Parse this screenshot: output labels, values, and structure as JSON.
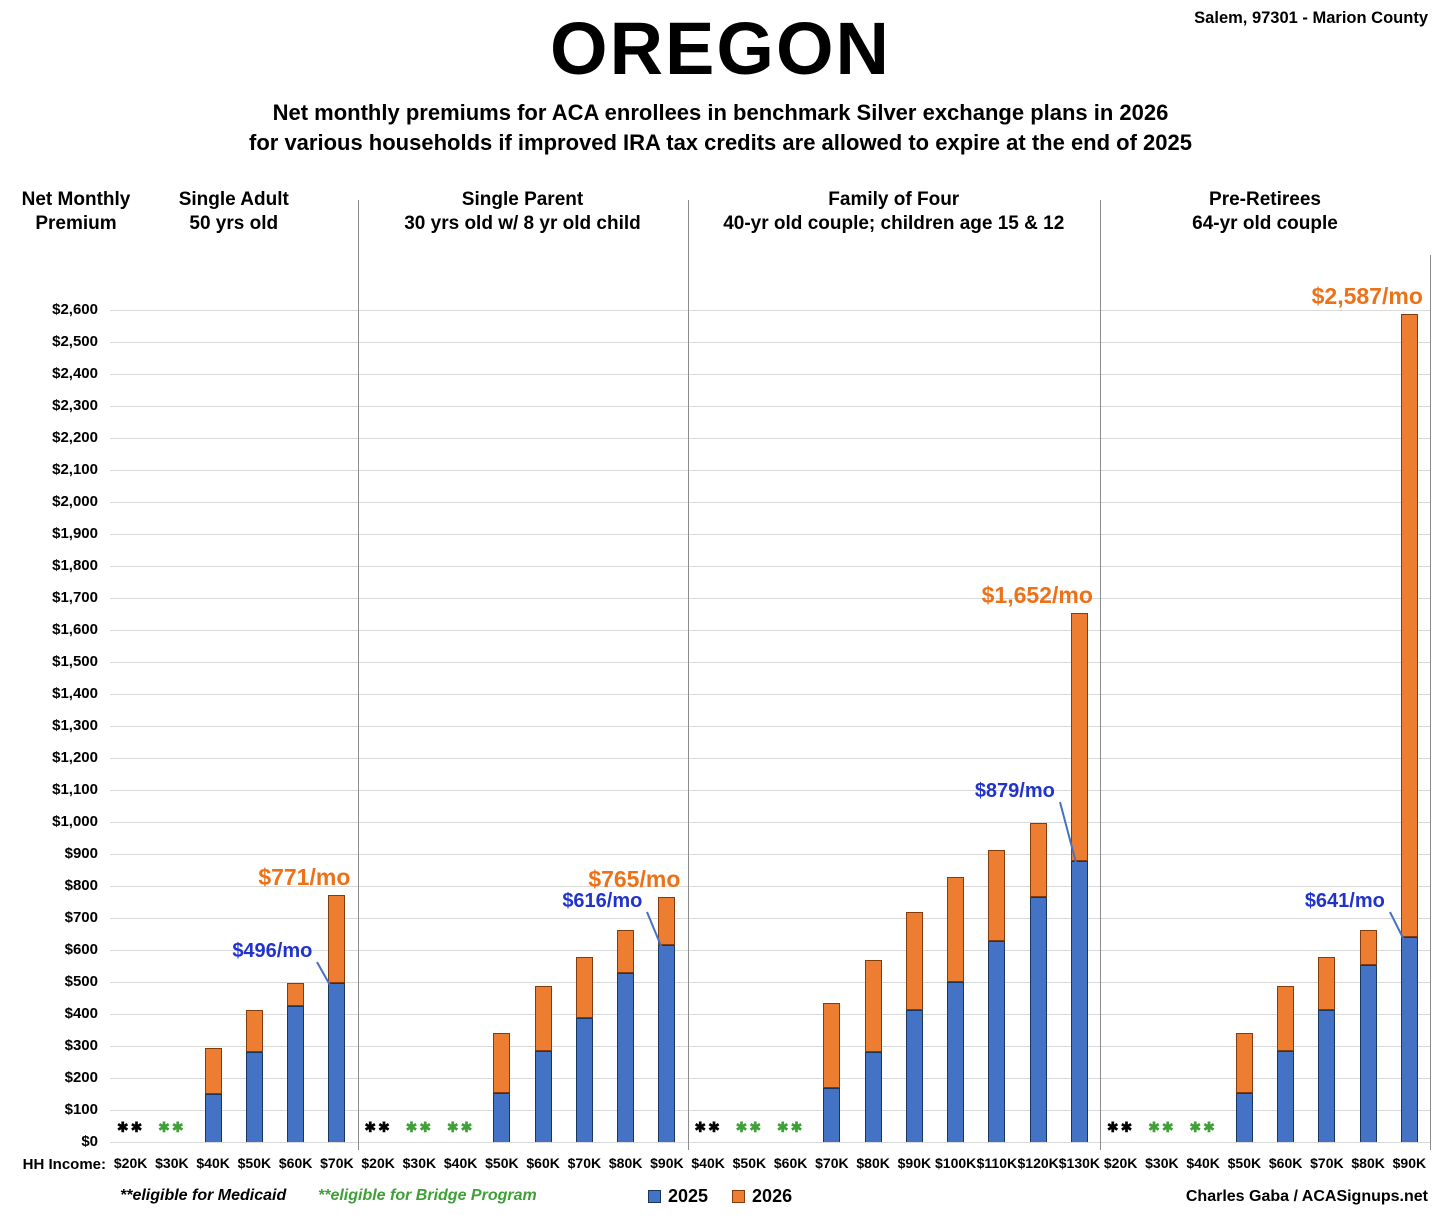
{
  "header": {
    "title": "OREGON",
    "subtitle_line1": "Net monthly premiums for ACA enrollees in benchmark Silver exchange plans in 2026",
    "subtitle_line2": "for various households if improved IRA tax credits are allowed to expire at the end of 2025",
    "location": "Salem, 97301 - Marion County"
  },
  "axis": {
    "title_line1": "Net Monthly",
    "title_line2": "Premium",
    "hh_income_label": "HH Income:"
  },
  "footnotes": {
    "medicaid": "**eligible for Medicaid",
    "bridge": "**eligible for Bridge Program"
  },
  "credit": "Charles Gaba / ACASignups.net",
  "colors": {
    "bar_2025": "#4472C4",
    "bar_2025_border": "#17375E",
    "bar_2026": "#ED7D31",
    "bar_2026_border": "#843C0C",
    "callout_2025_text": "#2233CC",
    "callout_2026_text": "#ED7117",
    "leader_line": "#4472C4",
    "bridge_green": "#3FA037",
    "medicaid_black": "#000000",
    "grid": "#D9D9D9",
    "divider": "#8C8C8C"
  },
  "chart_data": {
    "type": "bar",
    "description": "Stacked columns: blue = 2025 net monthly premium; orange segment on top extends to the 2026 net monthly premium.",
    "y_axis": {
      "min": 0,
      "max": 2600,
      "step": 100,
      "tick_format": "$#,##0"
    },
    "grid": "horizontal",
    "legend_position": "bottom",
    "legend": [
      {
        "key": "2025",
        "label": "2025"
      },
      {
        "key": "2026",
        "label": "2026"
      }
    ],
    "markers": {
      "medicaid": {
        "glyph": "✱✱"
      },
      "bridge": {
        "glyph": "✱✱"
      }
    },
    "panels": [
      {
        "title_line1": "Single Adult",
        "title_line2": "50 yrs old",
        "categories": [
          "$20K",
          "$30K",
          "$40K",
          "$50K",
          "$60K",
          "$70K"
        ],
        "markers": [
          "medicaid",
          "bridge",
          null,
          null,
          null,
          null
        ],
        "premium_2025": [
          null,
          null,
          150,
          282,
          424,
          496
        ],
        "premium_2026": [
          null,
          null,
          295,
          414,
          498,
          771
        ]
      },
      {
        "title_line1": "Single Parent",
        "title_line2": "30 yrs old w/ 8 yr old child",
        "categories": [
          "$20K",
          "$30K",
          "$40K",
          "$50K",
          "$60K",
          "$70K",
          "$80K",
          "$90K"
        ],
        "markers": [
          "medicaid",
          "bridge",
          "bridge",
          null,
          null,
          null,
          null,
          null
        ],
        "premium_2025": [
          null,
          null,
          null,
          152,
          285,
          388,
          527,
          616
        ],
        "premium_2026": [
          null,
          null,
          null,
          342,
          488,
          577,
          662,
          765
        ]
      },
      {
        "title_line1": "Family of Four",
        "title_line2": "40-yr old couple; children age 15 & 12",
        "categories": [
          "$40K",
          "$50K",
          "$60K",
          "$70K",
          "$80K",
          "$90K",
          "$100K",
          "$110K",
          "$120K",
          "$130K"
        ],
        "markers": [
          "medicaid",
          "bridge",
          "bridge",
          null,
          null,
          null,
          null,
          null,
          null,
          null
        ],
        "premium_2025": [
          null,
          null,
          null,
          170,
          282,
          413,
          499,
          627,
          767,
          879
        ],
        "premium_2026": [
          null,
          null,
          null,
          435,
          570,
          718,
          829,
          913,
          996,
          1652
        ]
      },
      {
        "title_line1": "Pre-Retirees",
        "title_line2": "64-yr old couple",
        "categories": [
          "$20K",
          "$30K",
          "$40K",
          "$50K",
          "$60K",
          "$70K",
          "$80K",
          "$90K"
        ],
        "markers": [
          "medicaid",
          "bridge",
          "bridge",
          null,
          null,
          null,
          null,
          null
        ],
        "premium_2025": [
          null,
          null,
          null,
          152,
          285,
          413,
          552,
          641
        ],
        "premium_2026": [
          null,
          null,
          null,
          342,
          487,
          577,
          662,
          2587
        ]
      }
    ],
    "callouts": [
      {
        "panel": 0,
        "cat": 5,
        "series": "2026",
        "label": "$771/mo"
      },
      {
        "panel": 0,
        "cat": 5,
        "series": "2025",
        "label": "$496/mo"
      },
      {
        "panel": 1,
        "cat": 7,
        "series": "2026",
        "label": "$765/mo"
      },
      {
        "panel": 1,
        "cat": 7,
        "series": "2025",
        "label": "$616/mo"
      },
      {
        "panel": 2,
        "cat": 9,
        "series": "2026",
        "label": "$1,652/mo"
      },
      {
        "panel": 2,
        "cat": 9,
        "series": "2025",
        "label": "$879/mo"
      },
      {
        "panel": 3,
        "cat": 7,
        "series": "2026",
        "label": "$2,587/mo"
      },
      {
        "panel": 3,
        "cat": 7,
        "series": "2025",
        "label": "$641/mo"
      }
    ]
  }
}
